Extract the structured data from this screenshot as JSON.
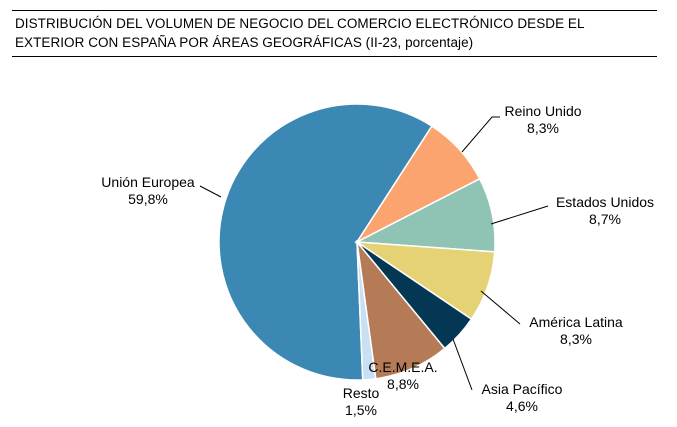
{
  "title": {
    "line1": "DISTRIBUCIÓN DEL VOLUMEN DE NEGOCIO DEL COMERCIO ELECTRÓNICO DESDE EL",
    "line2": "EXTERIOR CON ESPAÑA POR ÁREAS GEOGRÁFICAS (II-23, porcentaje)"
  },
  "chart_data": {
    "type": "pie",
    "title": "DISTRIBUCIÓN DEL VOLUMEN DE NEGOCIO DEL COMERCIO ELECTRÓNICO DESDE EL EXTERIOR CON ESPAÑA POR ÁREAS GEOGRÁFICAS (II-23, porcentaje)",
    "legend": "none",
    "slices": [
      {
        "label": "Unión Europea",
        "value": 59.8,
        "value_label": "59,8%",
        "color": "#3A88B3"
      },
      {
        "label": "Reino Unido",
        "value": 8.3,
        "value_label": "8,3%",
        "color": "#FCA470"
      },
      {
        "label": "Estados Unidos",
        "value": 8.7,
        "value_label": "8,7%",
        "color": "#8FC3B3"
      },
      {
        "label": "América Latina",
        "value": 8.3,
        "value_label": "8,3%",
        "color": "#E5D274"
      },
      {
        "label": "Asia Pacífico",
        "value": 4.6,
        "value_label": "4,6%",
        "color": "#043754"
      },
      {
        "label": "C.E.M.E.A.",
        "value": 8.8,
        "value_label": "8,8%",
        "color": "#B57B57"
      },
      {
        "label": "Resto",
        "value": 1.5,
        "value_label": "1,5%",
        "color": "#C9DFF3"
      }
    ]
  }
}
